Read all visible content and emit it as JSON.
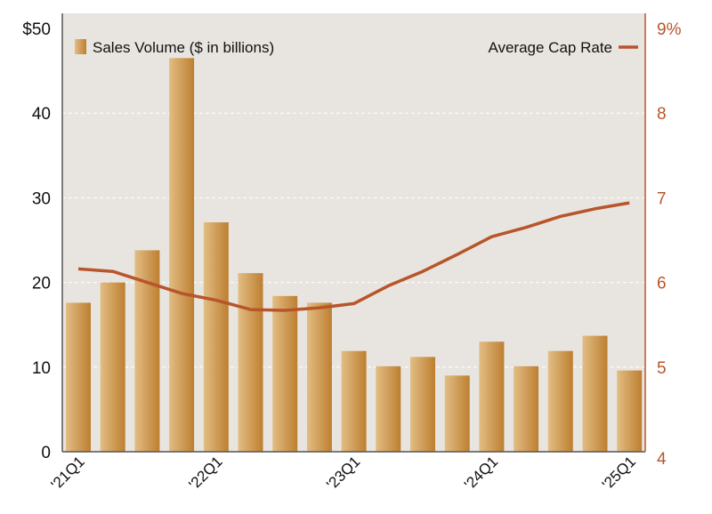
{
  "chart_data": {
    "type": "bar+line",
    "categories": [
      "'21Q1",
      "'21Q2",
      "'21Q3",
      "'21Q4",
      "'22Q1",
      "'22Q2",
      "'22Q3",
      "'22Q4",
      "'23Q1",
      "'23Q2",
      "'23Q3",
      "'23Q4",
      "'24Q1",
      "'24Q2",
      "'24Q3",
      "'24Q4",
      "'25Q1"
    ],
    "x_tick_labels": [
      "'21Q1",
      "'22Q1",
      "'23Q1",
      "'24Q1",
      "'25Q1"
    ],
    "series": [
      {
        "name": "Sales Volume ($ in billions)",
        "type": "bar",
        "axis": "left",
        "values": [
          17.6,
          20.0,
          23.8,
          46.5,
          27.1,
          21.1,
          18.4,
          17.6,
          11.9,
          10.1,
          11.2,
          9.0,
          13.0,
          10.1,
          11.9,
          13.7,
          9.6
        ]
      },
      {
        "name": "Average Cap Rate",
        "type": "line",
        "axis": "right",
        "values": [
          6.16,
          6.13,
          6.0,
          5.87,
          5.79,
          5.68,
          5.67,
          5.7,
          5.75,
          5.96,
          6.13,
          6.33,
          6.54,
          6.65,
          6.78,
          6.87,
          6.94
        ]
      }
    ],
    "left_axis": {
      "ylim": [
        0,
        50
      ],
      "tick_labels": [
        "0",
        "10",
        "20",
        "30",
        "40",
        "$50"
      ]
    },
    "right_axis": {
      "ylim": [
        4,
        9
      ],
      "tick_labels": [
        "4",
        "5",
        "6",
        "7",
        "8",
        "9%"
      ]
    },
    "grid": true,
    "legend": {
      "bar": "top-left",
      "line": "top-right"
    },
    "colors": {
      "bar_light": "#e2bd84",
      "bar_dark": "#bd7f30",
      "line": "#b8552b",
      "plot_bg": "#e8e5e0",
      "right_axis": "#b8552b"
    }
  }
}
